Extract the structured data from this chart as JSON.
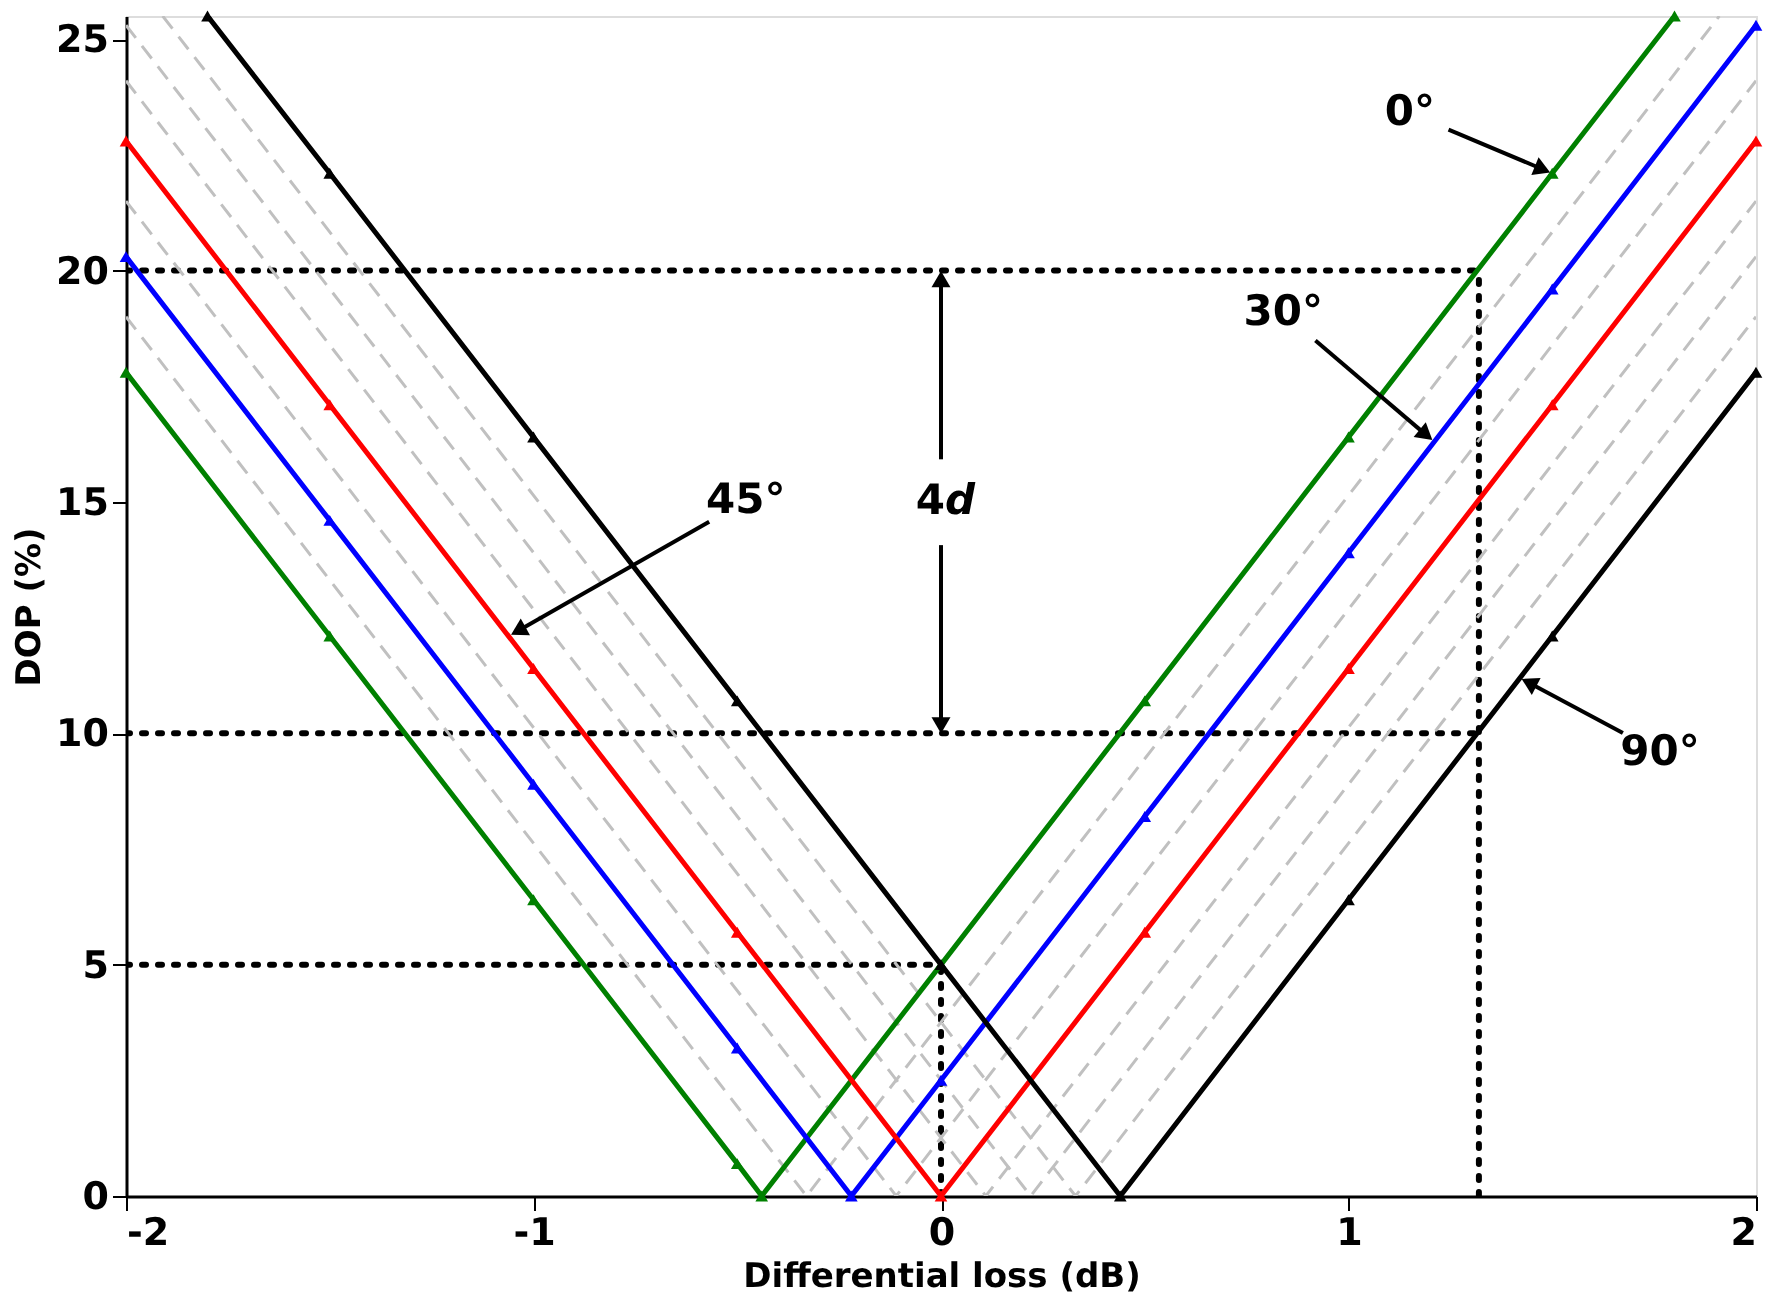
{
  "chart_data": {
    "type": "line",
    "xlabel": "Differential loss (dB)",
    "ylabel": "DOP (%)",
    "xlim": [
      -2,
      2
    ],
    "xticks": [
      -2,
      -1,
      0,
      1,
      2
    ],
    "ylim": [
      0,
      25.5
    ],
    "yticks": [
      0,
      5,
      10,
      15,
      20,
      25
    ],
    "grid": false,
    "series": [
      {
        "color": "#c0c0c0",
        "line_style": "dashed",
        "marker": "none",
        "x": [
          -2,
          -0.33,
          1.91
        ],
        "values": [
          19.0,
          0,
          25.5
        ]
      },
      {
        "color": "#c0c0c0",
        "line_style": "dashed",
        "marker": "none",
        "x": [
          -2,
          -0.11,
          2
        ],
        "values": [
          21.5,
          0,
          24.1
        ]
      },
      {
        "color": "#c0c0c0",
        "line_style": "dashed",
        "marker": "none",
        "x": [
          -2,
          0.11,
          2
        ],
        "values": [
          24.1,
          0,
          21.5
        ]
      },
      {
        "color": "#c0c0c0",
        "line_style": "dashed",
        "marker": "none",
        "x": [
          -2,
          0.22,
          2
        ],
        "values": [
          25.3,
          0,
          20.3
        ]
      },
      {
        "color": "#c0c0c0",
        "line_style": "dashed",
        "marker": "none",
        "x": [
          -1.91,
          0.33,
          2
        ],
        "values": [
          25.5,
          0,
          19.0
        ]
      },
      {
        "color": "#008000",
        "line_style": "solid",
        "marker": "triangle",
        "x": [
          -2,
          -1.5,
          -1,
          -0.5,
          -0.44,
          0,
          0.5,
          1,
          1.5,
          1.8
        ],
        "values": [
          17.8,
          12.1,
          6.4,
          0.7,
          0,
          5.0,
          10.7,
          16.4,
          22.1,
          25.5
        ]
      },
      {
        "color": "#0000ff",
        "line_style": "solid",
        "marker": "triangle",
        "x": [
          -2,
          -1.5,
          -1,
          -0.5,
          -0.22,
          0,
          0.5,
          1,
          1.5,
          2
        ],
        "values": [
          20.3,
          14.6,
          8.9,
          3.2,
          0,
          2.5,
          8.2,
          13.9,
          19.6,
          25.3
        ]
      },
      {
        "color": "#ff0000",
        "line_style": "solid",
        "marker": "triangle",
        "x": [
          -2,
          -1.5,
          -1,
          -0.5,
          0,
          0.5,
          1,
          1.5,
          2
        ],
        "values": [
          22.8,
          17.1,
          11.4,
          5.7,
          0,
          5.7,
          11.4,
          17.1,
          22.8
        ]
      },
      {
        "color": "#000000",
        "line_style": "solid",
        "marker": "triangle",
        "x": [
          -1.8,
          -1.5,
          -1,
          -0.5,
          0,
          0.44,
          1,
          1.5,
          2
        ],
        "values": [
          25.5,
          22.1,
          16.4,
          10.7,
          5.0,
          0,
          6.4,
          12.1,
          17.8
        ]
      },
      {
        "color": "#000000",
        "line_style": "dotted",
        "marker": "none",
        "x": [
          -2,
          1.32
        ],
        "values": [
          20,
          20
        ]
      },
      {
        "color": "#000000",
        "line_style": "dotted",
        "marker": "none",
        "x": [
          -2,
          1.32
        ],
        "values": [
          10,
          10
        ]
      },
      {
        "color": "#000000",
        "line_style": "dotted",
        "marker": "none",
        "x": [
          -2,
          0
        ],
        "values": [
          5,
          5
        ]
      },
      {
        "color": "#000000",
        "line_style": "dotted",
        "marker": "none",
        "x": [
          1.32,
          1.32
        ],
        "values": [
          0,
          20
        ]
      },
      {
        "color": "#000000",
        "line_style": "dotted",
        "marker": "none",
        "x": [
          0,
          0
        ],
        "values": [
          0,
          5
        ]
      }
    ],
    "annotations": [
      {
        "text": "0°",
        "x": 1.5,
        "y": 22.1
      },
      {
        "text": "30°",
        "x": 1.21,
        "y": 16.3
      },
      {
        "text": "90°",
        "x": 1.42,
        "y": 11.2
      },
      {
        "text": "45°",
        "x": -1.06,
        "y": 12.1
      },
      {
        "text": "4d",
        "x": 0,
        "y": 20
      }
    ]
  }
}
